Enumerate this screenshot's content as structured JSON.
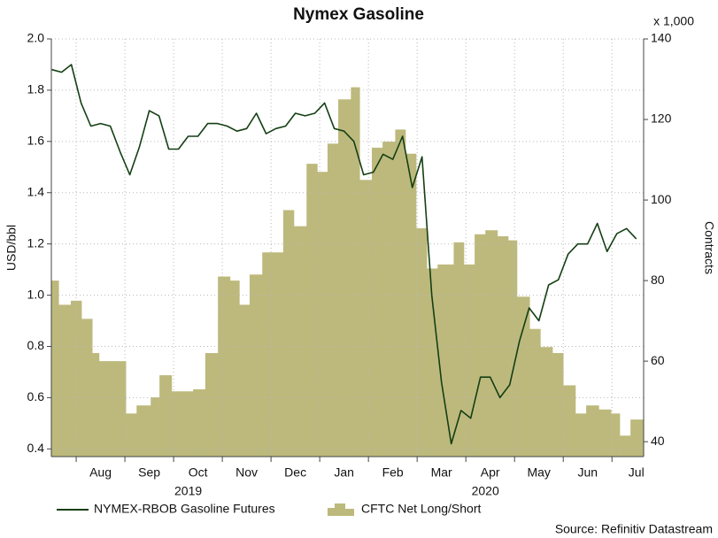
{
  "chart_data": {
    "type": "line",
    "title": "Nymex Gasoline",
    "ylabel": "USD/bbl",
    "y2label": "Contracts",
    "y2_unit_label": "x 1,000",
    "source": "Source: Refinitiv Datastream",
    "xlim": [
      0.49,
      12.65
    ],
    "xticks": [
      {
        "value": 1.5,
        "label": "Aug"
      },
      {
        "value": 2.5,
        "label": "Sep"
      },
      {
        "value": 3.5,
        "label": "Oct"
      },
      {
        "value": 4.5,
        "label": "Nov"
      },
      {
        "value": 5.5,
        "label": "Dec"
      },
      {
        "value": 6.5,
        "label": "Jan"
      },
      {
        "value": 7.5,
        "label": "Feb"
      },
      {
        "value": 8.5,
        "label": "Mar"
      },
      {
        "value": 9.5,
        "label": "Apr"
      },
      {
        "value": 10.5,
        "label": "May"
      },
      {
        "value": 11.5,
        "label": "Jun"
      },
      {
        "value": 12.5,
        "label": "Jul"
      }
    ],
    "year_labels": [
      {
        "value": 3.3,
        "label": "2019"
      },
      {
        "value": 9.4,
        "label": "2020"
      }
    ],
    "ylim": [
      0.37,
      2.0
    ],
    "yticks": [
      0.4,
      0.6,
      0.8,
      {
        "value": 1.0,
        "label": "1.0"
      },
      1.2,
      1.4,
      1.6,
      1.8,
      {
        "value": 2.0,
        "label": "2.0"
      }
    ],
    "y2lim": [
      36.3,
      140
    ],
    "y2ticks": [
      40,
      60,
      80,
      100,
      120,
      140
    ],
    "grid": true,
    "series": [
      {
        "name": "CFTC Net Long/Short",
        "type": "step-area",
        "axis": "y2",
        "color": "#bdb97c",
        "x": [
          0.49,
          0.64,
          0.89,
          1.11,
          1.33,
          1.47,
          1.58,
          2.02,
          2.24,
          2.53,
          2.71,
          2.96,
          3.4,
          3.65,
          3.91,
          4.16,
          4.35,
          4.56,
          4.82,
          5.25,
          5.47,
          5.73,
          5.95,
          6.16,
          6.38,
          6.64,
          6.82,
          7.07,
          7.29,
          7.55,
          7.76,
          7.98,
          8.2,
          8.42,
          8.75,
          8.96,
          9.18,
          9.4,
          9.65,
          9.87,
          10.05,
          10.31,
          10.53,
          10.78,
          11.0,
          11.25,
          11.47,
          11.73,
          11.98,
          12.16,
          12.38
        ],
        "values": [
          80,
          74,
          75,
          70.5,
          62,
          60,
          60,
          47,
          49,
          51,
          56.5,
          52.5,
          53,
          62,
          81,
          80,
          74,
          81.5,
          87,
          97.5,
          93.5,
          109,
          107,
          114,
          125,
          128,
          105,
          113,
          114.5,
          117.5,
          111.5,
          93,
          83,
          84,
          89.5,
          84,
          91.5,
          92.5,
          91,
          90,
          76,
          68,
          63.5,
          62,
          54,
          47,
          49,
          48,
          47,
          41.5,
          45.5
        ]
      },
      {
        "name": "NYMEX-RBOB Gasoline Futures",
        "type": "line",
        "color": "#143f14",
        "x": [
          0.5,
          0.7,
          0.9,
          1.1,
          1.3,
          1.5,
          1.7,
          1.9,
          2.1,
          2.3,
          2.5,
          2.7,
          2.9,
          3.1,
          3.3,
          3.5,
          3.7,
          3.9,
          4.1,
          4.3,
          4.5,
          4.7,
          4.9,
          5.1,
          5.3,
          5.5,
          5.7,
          5.9,
          6.1,
          6.3,
          6.5,
          6.7,
          6.9,
          7.1,
          7.3,
          7.5,
          7.7,
          7.9,
          8.1,
          8.3,
          8.5,
          8.7,
          8.9,
          9.1,
          9.3,
          9.5,
          9.7,
          9.9,
          10.1,
          10.3,
          10.5,
          10.7,
          10.9,
          11.1,
          11.3,
          11.5,
          11.7,
          11.9,
          12.1,
          12.3,
          12.5
        ],
        "values": [
          1.88,
          1.87,
          1.9,
          1.75,
          1.66,
          1.67,
          1.66,
          1.56,
          1.47,
          1.58,
          1.72,
          1.7,
          1.57,
          1.57,
          1.62,
          1.62,
          1.67,
          1.67,
          1.66,
          1.64,
          1.65,
          1.71,
          1.63,
          1.65,
          1.66,
          1.71,
          1.7,
          1.71,
          1.75,
          1.65,
          1.64,
          1.6,
          1.47,
          1.48,
          1.55,
          1.53,
          1.62,
          1.42,
          1.54,
          1.0,
          0.66,
          0.42,
          0.55,
          0.52,
          0.68,
          0.68,
          0.6,
          0.65,
          0.82,
          0.95,
          0.9,
          1.04,
          1.06,
          1.16,
          1.2,
          1.2,
          1.28,
          1.17,
          1.24,
          1.26,
          1.22
        ]
      }
    ]
  }
}
